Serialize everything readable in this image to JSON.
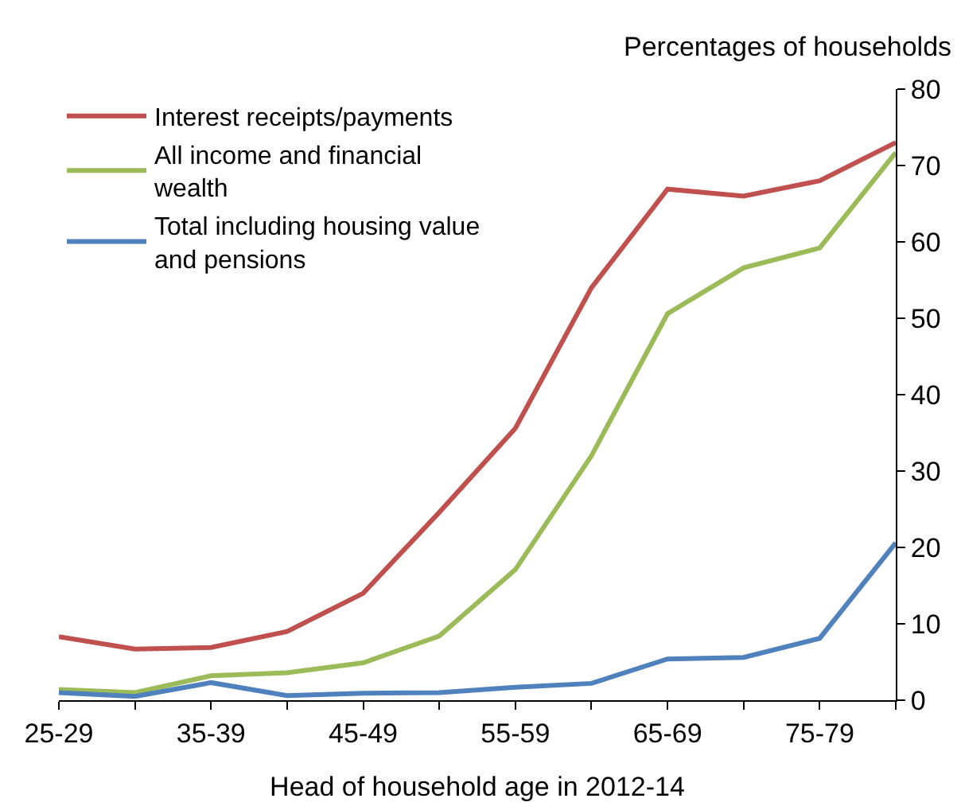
{
  "chart_data": {
    "type": "line",
    "xlabel": "Head of household age in 2012-14",
    "ylabel": "Percentages of households",
    "categories": [
      "25-29",
      null,
      "35-39",
      null,
      "45-49",
      null,
      "55-59",
      null,
      "65-69",
      null,
      "75-79",
      null
    ],
    "series": [
      {
        "name": "Interest receipts/payments",
        "color": "#c0504d",
        "values": [
          8.3,
          6.7,
          6.9,
          9.0,
          14.0,
          24.6,
          35.6,
          54,
          66.9,
          66,
          68,
          73
        ]
      },
      {
        "name": "All income and financial wealth",
        "color": "#9bbb59",
        "values": [
          1.4,
          1.0,
          3.2,
          3.6,
          4.9,
          8.4,
          17.1,
          32,
          50.6,
          56.6,
          59.2,
          71.7
        ]
      },
      {
        "name": "Total including housing value and pensions",
        "color": "#4f81bd",
        "values": [
          1.0,
          0.5,
          2.3,
          0.6,
          0.9,
          1.0,
          1.7,
          2.2,
          5.4,
          5.6,
          8.1,
          20.6
        ]
      }
    ],
    "ylim": [
      0,
      80
    ],
    "yticks": [
      0,
      10,
      20,
      30,
      40,
      50,
      60,
      70,
      80
    ],
    "grid": false,
    "legend": "top left",
    "marker": "none",
    "line_style": "solid"
  }
}
